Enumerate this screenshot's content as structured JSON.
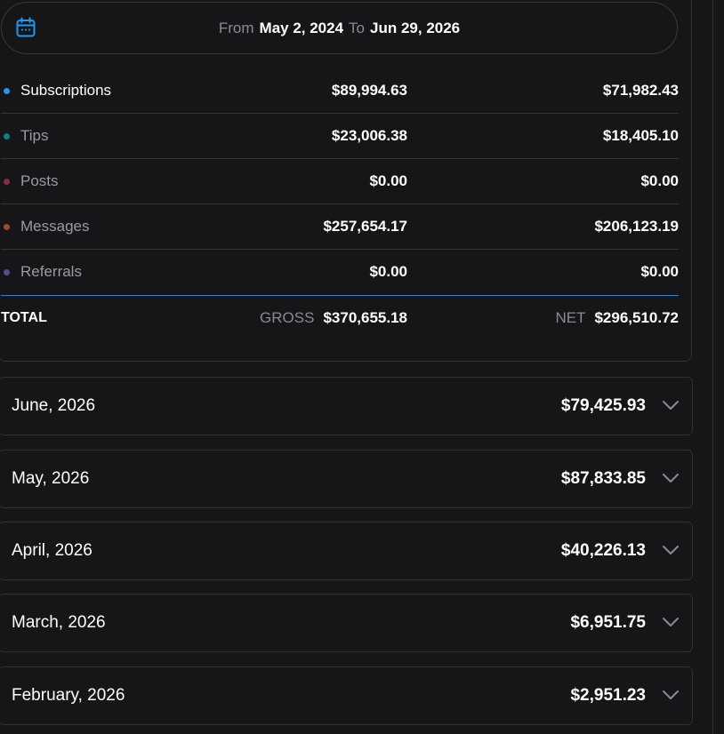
{
  "date_range": {
    "from_label": "From",
    "from_value": "May 2, 2024",
    "to_label": "To",
    "to_value": "Jun 29, 2026"
  },
  "categories": [
    {
      "label": "Subscriptions",
      "gross": "$89,994.63",
      "net": "$71,982.43",
      "dot_color": "#2196f3"
    },
    {
      "label": "Tips",
      "gross": "$23,006.38",
      "net": "$18,405.10",
      "dot_color": "#0f7f80"
    },
    {
      "label": "Posts",
      "gross": "$0.00",
      "net": "$0.00",
      "dot_color": "#8c2a45"
    },
    {
      "label": "Messages",
      "gross": "$257,654.17",
      "net": "$206,123.19",
      "dot_color": "#a2482a"
    },
    {
      "label": "Referrals",
      "gross": "$0.00",
      "net": "$0.00",
      "dot_color": "#5d4a8c"
    }
  ],
  "total": {
    "label": "TOTAL",
    "gross_caption": "GROSS",
    "gross_value": "$370,655.18",
    "net_caption": "NET",
    "net_value": "$296,510.72"
  },
  "months": [
    {
      "label": "June, 2026",
      "amount": "$79,425.93"
    },
    {
      "label": "May, 2026",
      "amount": "$87,833.85"
    },
    {
      "label": "April, 2026",
      "amount": "$40,226.13"
    },
    {
      "label": "March, 2026",
      "amount": "$6,951.75"
    },
    {
      "label": "February, 2026",
      "amount": "$2,951.23"
    }
  ],
  "icons": {
    "calendar": "calendar-icon",
    "expand": "chevron-down-icon"
  },
  "colors": {
    "accent": "#2196f3",
    "background": "#161618",
    "divider_accent": "#2a84c8"
  }
}
